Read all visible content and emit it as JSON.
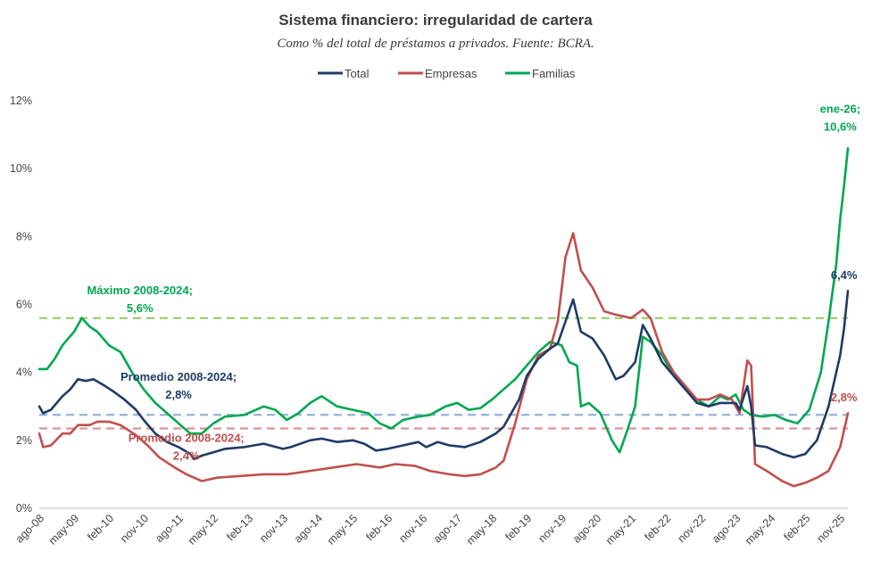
{
  "chart_data": {
    "type": "line",
    "title": "Sistema financiero: irregularidad  de cartera",
    "subtitle": "Como % del total de préstamos a privados. Fuente: BCRA.",
    "xlabel": "",
    "ylabel": "",
    "ylim": [
      0,
      12
    ],
    "yticks": [
      0,
      2,
      4,
      6,
      8,
      10,
      12
    ],
    "ytick_labels": [
      "0%",
      "2%",
      "4%",
      "6%",
      "8%",
      "10%",
      "12%"
    ],
    "grid": false,
    "legend_position": "top-center",
    "x_start": "2008-08",
    "x_end": "2026-01",
    "xtick_labels": [
      "ago-08",
      "may-09",
      "feb-10",
      "nov-10",
      "ago-11",
      "may-12",
      "feb-13",
      "nov-13",
      "ago-14",
      "may-15",
      "feb-16",
      "nov-16",
      "ago-17",
      "may-18",
      "feb-19",
      "nov-19",
      "ago-20",
      "may-21",
      "feb-22",
      "nov-22",
      "ago-23",
      "may-24",
      "feb-25",
      "nov-25"
    ],
    "series": [
      {
        "name": "Total",
        "color": "#1f3b66",
        "keypoints": [
          [
            "2008-08",
            3.0
          ],
          [
            "2008-09",
            2.8
          ],
          [
            "2008-11",
            2.9
          ],
          [
            "2009-02",
            3.3
          ],
          [
            "2009-04",
            3.5
          ],
          [
            "2009-06",
            3.8
          ],
          [
            "2009-08",
            3.75
          ],
          [
            "2009-10",
            3.8
          ],
          [
            "2010-01",
            3.6
          ],
          [
            "2010-03",
            3.45
          ],
          [
            "2010-06",
            3.2
          ],
          [
            "2010-09",
            2.9
          ],
          [
            "2010-11",
            2.6
          ],
          [
            "2011-02",
            2.2
          ],
          [
            "2011-05",
            1.95
          ],
          [
            "2011-08",
            1.8
          ],
          [
            "2011-11",
            1.6
          ],
          [
            "2011-12",
            1.45
          ],
          [
            "2012-02",
            1.55
          ],
          [
            "2012-05",
            1.65
          ],
          [
            "2012-08",
            1.75
          ],
          [
            "2013-01",
            1.8
          ],
          [
            "2013-06",
            1.9
          ],
          [
            "2013-11",
            1.75
          ],
          [
            "2014-01",
            1.8
          ],
          [
            "2014-06",
            2.0
          ],
          [
            "2014-09",
            2.05
          ],
          [
            "2015-01",
            1.95
          ],
          [
            "2015-05",
            2.0
          ],
          [
            "2015-08",
            1.9
          ],
          [
            "2015-11",
            1.7
          ],
          [
            "2016-02",
            1.75
          ],
          [
            "2016-06",
            1.85
          ],
          [
            "2016-10",
            1.95
          ],
          [
            "2016-12",
            1.8
          ],
          [
            "2017-03",
            1.95
          ],
          [
            "2017-06",
            1.85
          ],
          [
            "2017-10",
            1.8
          ],
          [
            "2018-02",
            1.95
          ],
          [
            "2018-06",
            2.2
          ],
          [
            "2018-08",
            2.4
          ],
          [
            "2018-12",
            3.2
          ],
          [
            "2019-02",
            3.9
          ],
          [
            "2019-05",
            4.4
          ],
          [
            "2019-08",
            4.7
          ],
          [
            "2019-10",
            4.85
          ],
          [
            "2019-12",
            5.5
          ],
          [
            "2020-02",
            6.15
          ],
          [
            "2020-04",
            5.2
          ],
          [
            "2020-07",
            5.0
          ],
          [
            "2020-10",
            4.5
          ],
          [
            "2021-01",
            3.8
          ],
          [
            "2021-03",
            3.9
          ],
          [
            "2021-06",
            4.3
          ],
          [
            "2021-08",
            5.4
          ],
          [
            "2021-10",
            5.0
          ],
          [
            "2022-01",
            4.3
          ],
          [
            "2022-04",
            3.9
          ],
          [
            "2022-07",
            3.5
          ],
          [
            "2022-10",
            3.1
          ],
          [
            "2023-01",
            3.0
          ],
          [
            "2023-04",
            3.1
          ],
          [
            "2023-08",
            3.1
          ],
          [
            "2023-09",
            2.9
          ],
          [
            "2023-11",
            3.6
          ],
          [
            "2023-12",
            3.0
          ],
          [
            "2024-01",
            1.85
          ],
          [
            "2024-04",
            1.8
          ],
          [
            "2024-08",
            1.6
          ],
          [
            "2024-11",
            1.5
          ],
          [
            "2025-02",
            1.6
          ],
          [
            "2025-05",
            2.0
          ],
          [
            "2025-08",
            3.0
          ],
          [
            "2025-11",
            4.5
          ],
          [
            "2025-12",
            5.3
          ],
          [
            "2026-01",
            6.4
          ]
        ]
      },
      {
        "name": "Empresas",
        "color": "#c0504d",
        "keypoints": [
          [
            "2008-08",
            2.2
          ],
          [
            "2008-09",
            1.8
          ],
          [
            "2008-11",
            1.85
          ],
          [
            "2009-02",
            2.2
          ],
          [
            "2009-04",
            2.2
          ],
          [
            "2009-06",
            2.45
          ],
          [
            "2009-09",
            2.45
          ],
          [
            "2009-11",
            2.55
          ],
          [
            "2010-02",
            2.55
          ],
          [
            "2010-05",
            2.45
          ],
          [
            "2010-09",
            2.15
          ],
          [
            "2010-12",
            1.85
          ],
          [
            "2011-03",
            1.5
          ],
          [
            "2011-07",
            1.2
          ],
          [
            "2011-10",
            1.0
          ],
          [
            "2011-12",
            0.9
          ],
          [
            "2012-02",
            0.8
          ],
          [
            "2012-06",
            0.9
          ],
          [
            "2012-12",
            0.95
          ],
          [
            "2013-06",
            1.0
          ],
          [
            "2013-12",
            1.0
          ],
          [
            "2014-06",
            1.1
          ],
          [
            "2014-12",
            1.2
          ],
          [
            "2015-06",
            1.3
          ],
          [
            "2015-12",
            1.2
          ],
          [
            "2016-04",
            1.3
          ],
          [
            "2016-09",
            1.25
          ],
          [
            "2017-01",
            1.1
          ],
          [
            "2017-06",
            1.0
          ],
          [
            "2017-10",
            0.95
          ],
          [
            "2018-02",
            1.0
          ],
          [
            "2018-06",
            1.2
          ],
          [
            "2018-08",
            1.4
          ],
          [
            "2018-11",
            2.5
          ],
          [
            "2019-02",
            3.8
          ],
          [
            "2019-05",
            4.5
          ],
          [
            "2019-08",
            4.7
          ],
          [
            "2019-10",
            5.5
          ],
          [
            "2019-12",
            7.4
          ],
          [
            "2020-02",
            8.1
          ],
          [
            "2020-04",
            7.0
          ],
          [
            "2020-07",
            6.5
          ],
          [
            "2020-10",
            5.8
          ],
          [
            "2021-01",
            5.7
          ],
          [
            "2021-05",
            5.6
          ],
          [
            "2021-08",
            5.85
          ],
          [
            "2021-10",
            5.6
          ],
          [
            "2022-01",
            4.6
          ],
          [
            "2022-04",
            4.0
          ],
          [
            "2022-07",
            3.6
          ],
          [
            "2022-10",
            3.2
          ],
          [
            "2023-01",
            3.2
          ],
          [
            "2023-04",
            3.35
          ],
          [
            "2023-07",
            3.2
          ],
          [
            "2023-09",
            2.8
          ],
          [
            "2023-11",
            4.35
          ],
          [
            "2023-12",
            4.2
          ],
          [
            "2024-01",
            1.3
          ],
          [
            "2024-04",
            1.1
          ],
          [
            "2024-08",
            0.8
          ],
          [
            "2024-11",
            0.65
          ],
          [
            "2025-02",
            0.75
          ],
          [
            "2025-05",
            0.9
          ],
          [
            "2025-08",
            1.1
          ],
          [
            "2025-11",
            1.8
          ],
          [
            "2025-12",
            2.3
          ],
          [
            "2026-01",
            2.8
          ]
        ]
      },
      {
        "name": "Familias",
        "color": "#00a850",
        "keypoints": [
          [
            "2008-08",
            4.1
          ],
          [
            "2008-10",
            4.1
          ],
          [
            "2008-12",
            4.4
          ],
          [
            "2009-02",
            4.8
          ],
          [
            "2009-05",
            5.2
          ],
          [
            "2009-07",
            5.6
          ],
          [
            "2009-09",
            5.35
          ],
          [
            "2009-11",
            5.2
          ],
          [
            "2010-02",
            4.8
          ],
          [
            "2010-05",
            4.6
          ],
          [
            "2010-08",
            4.0
          ],
          [
            "2010-11",
            3.5
          ],
          [
            "2011-02",
            3.1
          ],
          [
            "2011-05",
            2.8
          ],
          [
            "2011-08",
            2.5
          ],
          [
            "2011-11",
            2.2
          ],
          [
            "2012-02",
            2.2
          ],
          [
            "2012-05",
            2.5
          ],
          [
            "2012-08",
            2.7
          ],
          [
            "2013-01",
            2.75
          ],
          [
            "2013-06",
            3.0
          ],
          [
            "2013-09",
            2.9
          ],
          [
            "2013-12",
            2.6
          ],
          [
            "2014-03",
            2.8
          ],
          [
            "2014-06",
            3.1
          ],
          [
            "2014-09",
            3.3
          ],
          [
            "2015-01",
            3.0
          ],
          [
            "2015-05",
            2.9
          ],
          [
            "2015-09",
            2.8
          ],
          [
            "2015-12",
            2.5
          ],
          [
            "2016-03",
            2.35
          ],
          [
            "2016-06",
            2.6
          ],
          [
            "2016-10",
            2.7
          ],
          [
            "2017-01",
            2.75
          ],
          [
            "2017-05",
            3.0
          ],
          [
            "2017-08",
            3.1
          ],
          [
            "2017-11",
            2.9
          ],
          [
            "2018-02",
            2.95
          ],
          [
            "2018-05",
            3.2
          ],
          [
            "2018-08",
            3.5
          ],
          [
            "2018-11",
            3.8
          ],
          [
            "2019-02",
            4.2
          ],
          [
            "2019-05",
            4.6
          ],
          [
            "2019-08",
            4.9
          ],
          [
            "2019-11",
            4.8
          ],
          [
            "2020-01",
            4.3
          ],
          [
            "2020-03",
            4.2
          ],
          [
            "2020-04",
            3.0
          ],
          [
            "2020-06",
            3.1
          ],
          [
            "2020-09",
            2.8
          ],
          [
            "2020-12",
            2.0
          ],
          [
            "2021-02",
            1.65
          ],
          [
            "2021-04",
            2.3
          ],
          [
            "2021-06",
            3.0
          ],
          [
            "2021-08",
            5.05
          ],
          [
            "2021-10",
            4.9
          ],
          [
            "2022-01",
            4.5
          ],
          [
            "2022-04",
            3.9
          ],
          [
            "2022-07",
            3.5
          ],
          [
            "2022-10",
            3.2
          ],
          [
            "2023-01",
            3.0
          ],
          [
            "2023-04",
            3.3
          ],
          [
            "2023-06",
            3.2
          ],
          [
            "2023-08",
            3.35
          ],
          [
            "2023-10",
            2.9
          ],
          [
            "2023-12",
            2.75
          ],
          [
            "2024-03",
            2.7
          ],
          [
            "2024-06",
            2.75
          ],
          [
            "2024-09",
            2.6
          ],
          [
            "2024-12",
            2.5
          ],
          [
            "2025-03",
            2.9
          ],
          [
            "2025-06",
            4.0
          ],
          [
            "2025-08",
            5.5
          ],
          [
            "2025-10",
            7.2
          ],
          [
            "2025-11",
            8.5
          ],
          [
            "2025-12",
            9.5
          ],
          [
            "2026-01",
            10.6
          ]
        ]
      }
    ],
    "reference_lines": [
      {
        "label": "Máximo 2008-2024",
        "value": 5.6,
        "color": "#9bcb76",
        "text_color": "#00a850"
      },
      {
        "label": "Promedio 2008-2024 total",
        "value": 2.75,
        "color": "#95b3d7",
        "text_color": "#1f3b66"
      },
      {
        "label": "Promedio 2008-2024 empresas",
        "value": 2.35,
        "color": "#d99694",
        "text_color": "#c0504d"
      }
    ],
    "annotations": [
      {
        "lines": [
          "Máximo 2008-2024;",
          "5,6%"
        ],
        "color": "#00a850",
        "anchor_date": "2010-10",
        "value": 6.3
      },
      {
        "lines": [
          "Promedio 2008-2024;",
          "2,8%"
        ],
        "color": "#1f3b66",
        "anchor_date": "2011-08",
        "value": 3.75
      },
      {
        "lines": [
          "Promedio 2008-2024;",
          "2,4%"
        ],
        "color": "#c0504d",
        "anchor_date": "2011-10",
        "value": 1.95
      },
      {
        "lines": [
          "ene-26;",
          "10,6%"
        ],
        "color": "#00a850",
        "anchor_date": "2025-11",
        "value": 11.65
      },
      {
        "lines": [
          "6,4%"
        ],
        "color": "#1f3b66",
        "anchor_date": "2025-12",
        "value": 6.75
      },
      {
        "lines": [
          "2,8%"
        ],
        "color": "#c0504d",
        "anchor_date": "2025-12",
        "value": 3.15
      }
    ]
  }
}
